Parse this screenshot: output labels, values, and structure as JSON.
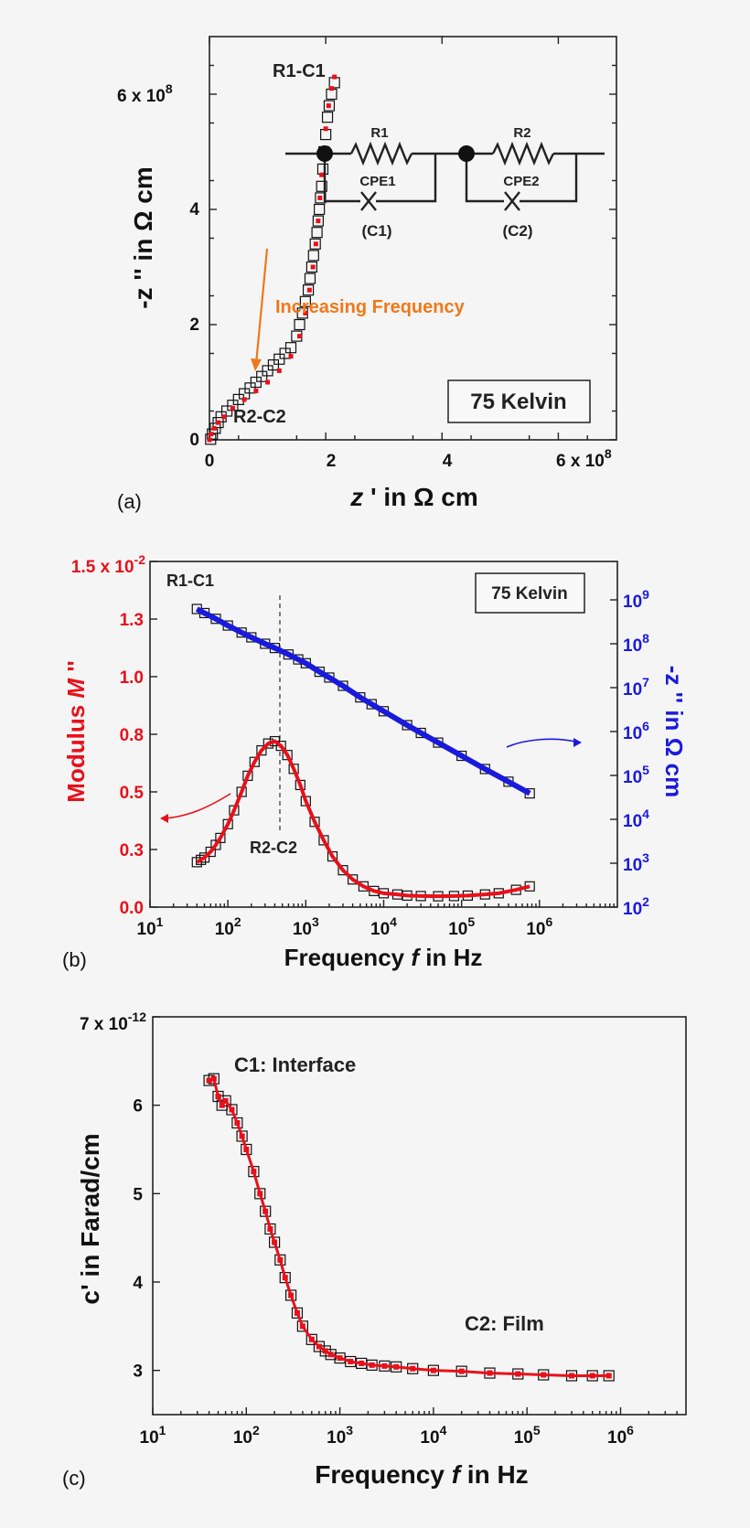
{
  "chart_data": [
    {
      "panel": "(a)",
      "type": "scatter",
      "xlabel_italic": "z",
      "xlabel_rest": " ' in Ω cm",
      "ylabel": "-z '' in Ω cm",
      "xlim": [
        0,
        700000000.0
      ],
      "ylim": [
        0,
        700000000.0
      ],
      "x_ticks": [
        "0",
        "2",
        "4"
      ],
      "x_tick_values": [
        0,
        200000000.0,
        400000000.0
      ],
      "x_last_tick": "6 x 10",
      "x_last_tick_exp": "8",
      "x_last_tick_value": 600000000.0,
      "y_ticks": [
        "0",
        "2",
        "4"
      ],
      "y_tick_values": [
        0,
        200000000.0,
        400000000.0
      ],
      "y_last_tick": "6 x 10",
      "y_last_tick_exp": "8",
      "y_last_tick_value": 600000000.0,
      "annotations": {
        "r1c1": "R1-C1",
        "r2c2": "R2-C2",
        "increasing": "Increasing Frequency",
        "temperature": "75 Kelvin",
        "circuit": {
          "r1": "R1",
          "r2": "R2",
          "cpe1": "CPE1",
          "cpe2": "CPE2",
          "c1": "(C1)",
          "c2": "(C2)"
        }
      },
      "series": [
        {
          "style": "open-square",
          "x": [
            2000000.0,
            5000000.0,
            10000000.0,
            15000000.0,
            20000000.0,
            30000000.0,
            40000000.0,
            50000000.0,
            60000000.0,
            70000000.0,
            80000000.0,
            90000000.0,
            100000000.0,
            110000000.0,
            120000000.0,
            130000000.0,
            140000000.0,
            150000000.0,
            155000000.0,
            160000000.0,
            165000000.0,
            170000000.0,
            173000000.0,
            176000000.0,
            179000000.0,
            182000000.0,
            185000000.0,
            187000000.0,
            189000000.0,
            191000000.0,
            193000000.0,
            195000000.0,
            197000000.0,
            200000000.0,
            203000000.0,
            206000000.0,
            210000000.0,
            215000000.0
          ],
          "y": [
            1000000.0,
            10000000.0,
            20000000.0,
            30000000.0,
            40000000.0,
            50000000.0,
            60000000.0,
            70000000.0,
            80000000.0,
            90000000.0,
            100000000.0,
            110000000.0,
            120000000.0,
            130000000.0,
            140000000.0,
            150000000.0,
            160000000.0,
            180000000.0,
            200000000.0,
            220000000.0,
            240000000.0,
            260000000.0,
            280000000.0,
            300000000.0,
            320000000.0,
            340000000.0,
            360000000.0,
            380000000.0,
            400000000.0,
            420000000.0,
            440000000.0,
            470000000.0,
            500000000.0,
            530000000.0,
            560000000.0,
            580000000.0,
            600000000.0,
            620000000.0
          ]
        },
        {
          "style": "red-fit",
          "x": [
            0,
            3000000.0,
            8000000.0,
            15000000.0,
            25000000.0,
            40000000.0,
            60000000.0,
            80000000.0,
            100000000.0,
            120000000.0,
            140000000.0,
            155000000.0,
            165000000.0,
            172000000.0,
            178000000.0,
            183000000.0,
            187000000.0,
            190000000.0,
            193000000.0,
            196000000.0,
            200000000.0,
            205000000.0,
            210000000.0,
            215000000.0
          ],
          "y": [
            0,
            10000000.0,
            20000000.0,
            30000000.0,
            40000000.0,
            55000000.0,
            70000000.0,
            85000000.0,
            100000000.0,
            120000000.0,
            145000000.0,
            180000000.0,
            220000000.0,
            260000000.0,
            300000000.0,
            340000000.0,
            380000000.0,
            420000000.0,
            460000000.0,
            500000000.0,
            540000000.0,
            580000000.0,
            610000000.0,
            630000000.0
          ]
        }
      ]
    },
    {
      "panel": "(b)",
      "type": "scatter",
      "xlabel": "Frequency",
      "xlabel_italic": "f",
      "xlabel_rest": " in Hz",
      "ylabel_left": "Modulus",
      "ylabel_left_italic": "M",
      "ylabel_left_suffix": " ''",
      "ylabel_right": "-z '' in Ω cm",
      "x_log": true,
      "xlim": [
        10,
        10000000
      ],
      "x_ticks": [
        "10",
        "10",
        "10",
        "10",
        "10",
        "10"
      ],
      "x_tick_exps": [
        "1",
        "2",
        "3",
        "4",
        "5",
        "6"
      ],
      "x_tick_values": [
        10,
        100,
        1000,
        10000,
        100000,
        1000000
      ],
      "left_ylim": [
        0,
        0.015
      ],
      "left_ticks": [
        "0.0",
        "0.3",
        "0.5",
        "0.8",
        "1.0",
        "1.3"
      ],
      "left_tick_values": [
        0,
        0.0025,
        0.005,
        0.0075,
        0.01,
        0.0125
      ],
      "left_top_tick": "1.5 x 10",
      "left_top_tick_exp": "-2",
      "left_top_tick_value": 0.015,
      "right_log": true,
      "right_ylim": [
        100,
        1000000000
      ],
      "right_ticks": [
        "10",
        "10",
        "10",
        "10",
        "10",
        "10",
        "10",
        "10"
      ],
      "right_tick_exps": [
        "2",
        "3",
        "4",
        "5",
        "6",
        "7",
        "8",
        "9"
      ],
      "right_tick_values": [
        100,
        1000,
        10000,
        100000,
        1000000,
        10000000,
        100000000,
        1000000000
      ],
      "annotations": {
        "r1c1": "R1-C1",
        "r2c2": "R2-C2",
        "temperature": "75 Kelvin"
      },
      "colors": {
        "left_axis": "#e8101a",
        "right_axis": "#1a1adc",
        "modulus_fit": "#e8101a",
        "impedance_fit": "#1a1adc"
      },
      "series": [
        {
          "style": "modulus",
          "axis": "left",
          "x": [
            40,
            45,
            50,
            60,
            70,
            80,
            100,
            120,
            150,
            180,
            220,
            270,
            330,
            400,
            480,
            580,
            700,
            850,
            1000,
            1300,
            1700,
            2200,
            3000,
            4000,
            5500,
            7500,
            10000,
            15000,
            20000,
            30000,
            50000,
            80000,
            120000,
            200000,
            300000,
            500000,
            750000
          ],
          "y": [
            0.00195,
            0.00205,
            0.00215,
            0.0024,
            0.0027,
            0.003,
            0.0036,
            0.0042,
            0.005,
            0.0057,
            0.0063,
            0.0068,
            0.0071,
            0.0072,
            0.007,
            0.0066,
            0.006,
            0.0053,
            0.0046,
            0.0037,
            0.0029,
            0.0022,
            0.0016,
            0.0012,
            0.0009,
            0.0007,
            0.0006,
            0.00055,
            0.0005,
            0.00048,
            0.00047,
            0.00048,
            0.0005,
            0.00055,
            0.0006,
            0.00075,
            0.0009
          ]
        },
        {
          "style": "impedance",
          "axis": "right",
          "x": [
            40,
            50,
            70,
            100,
            150,
            200,
            300,
            400,
            600,
            800,
            1000,
            1500,
            2000,
            3000,
            5000,
            7000,
            10000,
            20000,
            30000,
            50000,
            100000,
            200000,
            400000,
            750000
          ],
          "y": [
            620000000,
            500000000,
            370000000,
            260000000,
            180000000,
            140000000,
            100000000,
            80000000,
            57000000,
            44000000,
            36000000,
            23000000,
            17000000,
            11000000,
            6000000,
            4200000,
            2900000,
            1400000,
            930000,
            560000,
            280000,
            140000,
            72000,
            39000
          ]
        }
      ]
    },
    {
      "panel": "(c)",
      "type": "scatter",
      "xlabel": "Frequency",
      "xlabel_italic": "f",
      "xlabel_rest": " in Hz",
      "ylabel": "c' in Farad/cm",
      "x_log": true,
      "xlim": [
        10,
        5000000
      ],
      "x_ticks": [
        "10",
        "10",
        "10",
        "10",
        "10",
        "10"
      ],
      "x_tick_exps": [
        "1",
        "2",
        "3",
        "4",
        "5",
        "6"
      ],
      "x_tick_values": [
        10,
        100,
        1000,
        10000,
        100000,
        1000000
      ],
      "ylim": [
        2.5e-12,
        7e-12
      ],
      "y_ticks": [
        "3",
        "4",
        "5",
        "6"
      ],
      "y_tick_values": [
        3e-12,
        4e-12,
        5e-12,
        6e-12
      ],
      "y_top_tick": "7 x 10",
      "y_top_tick_exp": "-12",
      "y_top_tick_value": 7e-12,
      "annotations": {
        "c1": "C1: Interface",
        "c2": "C2: Film"
      },
      "series": [
        {
          "style": "capacitance",
          "x": [
            40,
            45,
            50,
            55,
            60,
            70,
            80,
            90,
            100,
            120,
            140,
            160,
            180,
            200,
            230,
            260,
            300,
            350,
            400,
            500,
            600,
            700,
            800,
            1000,
            1300,
            1700,
            2200,
            3000,
            4000,
            6000,
            10000,
            20000,
            40000,
            80000,
            150000,
            300000,
            500000,
            750000
          ],
          "y": [
            6.28e-12,
            6.3e-12,
            6.1e-12,
            6e-12,
            6.05e-12,
            5.95e-12,
            5.8e-12,
            5.65e-12,
            5.5e-12,
            5.25e-12,
            5e-12,
            4.8e-12,
            4.6e-12,
            4.45e-12,
            4.25e-12,
            4.05e-12,
            3.85e-12,
            3.65e-12,
            3.5e-12,
            3.35e-12,
            3.27e-12,
            3.22e-12,
            3.18e-12,
            3.14e-12,
            3.1e-12,
            3.08e-12,
            3.06e-12,
            3.05e-12,
            3.04e-12,
            3.02e-12,
            3e-12,
            2.99e-12,
            2.97e-12,
            2.96e-12,
            2.95e-12,
            2.94e-12,
            2.94e-12,
            2.94e-12
          ]
        }
      ]
    }
  ]
}
